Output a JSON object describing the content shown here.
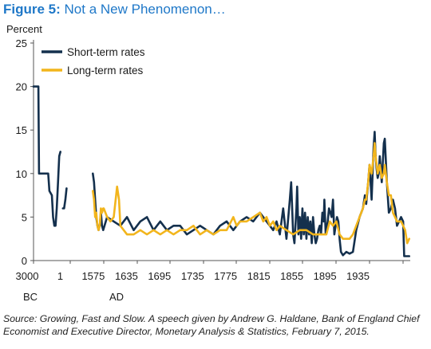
{
  "title": {
    "figure_label": "Figure 5:",
    "text": "Not a New Phenomenon…"
  },
  "source": "Source: Growing, Fast and Slow. A speech given by Andrew G. Haldane, Bank of England Chief Economist and Executive Director, Monetary Analysis & Statistics, February 7, 2015.",
  "colors": {
    "short_term": "#14304d",
    "long_term": "#f2b51c",
    "title": "#1f78c8"
  },
  "chart_data": {
    "type": "line",
    "ylabel": "Percent",
    "ylim": [
      0,
      25
    ],
    "yticks": [
      0,
      5,
      10,
      15,
      20,
      25
    ],
    "xtick_labels": [
      "3000",
      "1",
      "1575",
      "1635",
      "1695",
      "1735",
      "1775",
      "1815",
      "1855",
      "1895",
      "1935",
      "1975"
    ],
    "era_labels": [
      "BC",
      "AD"
    ],
    "grid": false,
    "legend_position": "top-left",
    "series": [
      {
        "name": "Short-term rates",
        "color": "#14304d",
        "segments": [
          [
            [
              -3000,
              20
            ],
            [
              -2800,
              20
            ],
            [
              -2600,
              20
            ],
            [
              -2550,
              10
            ],
            [
              -2300,
              10
            ],
            [
              -2000,
              10
            ],
            [
              -1800,
              10
            ],
            [
              -1700,
              8
            ],
            [
              -1500,
              7.5
            ],
            [
              -1400,
              5
            ],
            [
              -1300,
              4
            ],
            [
              -1200,
              4
            ],
            [
              -1100,
              6
            ],
            [
              -1000,
              9
            ],
            [
              -900,
              12
            ],
            [
              -800,
              12.5
            ]
          ],
          [
            [
              -600,
              6
            ],
            [
              -500,
              6
            ],
            [
              -400,
              7
            ],
            [
              -300,
              8.3
            ]
          ],
          [
            [
              1480,
              10
            ],
            [
              1490,
              9
            ],
            [
              1500,
              7
            ],
            [
              1510,
              5
            ],
            [
              1520,
              4
            ],
            [
              1530,
              3.5
            ],
            [
              1540,
              4
            ],
            [
              1550,
              5.5
            ],
            [
              1560,
              4
            ],
            [
              1570,
              3.5
            ],
            [
              1580,
              5
            ],
            [
              1590,
              4.5
            ],
            [
              1600,
              4
            ],
            [
              1610,
              5
            ],
            [
              1620,
              3.5
            ],
            [
              1630,
              4.5
            ],
            [
              1640,
              5
            ],
            [
              1650,
              3.5
            ],
            [
              1660,
              4.5
            ],
            [
              1670,
              3.5
            ],
            [
              1680,
              4
            ],
            [
              1690,
              4
            ],
            [
              1700,
              3
            ],
            [
              1710,
              3.5
            ],
            [
              1720,
              4
            ],
            [
              1730,
              3.5
            ],
            [
              1740,
              3
            ],
            [
              1750,
              4
            ],
            [
              1760,
              4.5
            ],
            [
              1770,
              3.5
            ],
            [
              1780,
              4.5
            ],
            [
              1790,
              5
            ],
            [
              1800,
              4.5
            ],
            [
              1810,
              5.5
            ],
            [
              1815,
              5
            ],
            [
              1820,
              4.5
            ],
            [
              1825,
              4
            ],
            [
              1830,
              3.5
            ],
            [
              1835,
              4.5
            ],
            [
              1840,
              3
            ],
            [
              1845,
              6
            ],
            [
              1850,
              2.5
            ],
            [
              1855,
              7
            ],
            [
              1857,
              9
            ],
            [
              1860,
              3
            ],
            [
              1862,
              2
            ],
            [
              1865,
              6
            ],
            [
              1866,
              8.5
            ],
            [
              1868,
              3
            ],
            [
              1870,
              5
            ],
            [
              1872,
              2.5
            ],
            [
              1874,
              6
            ],
            [
              1876,
              3
            ],
            [
              1878,
              5.5
            ],
            [
              1880,
              2.5
            ],
            [
              1882,
              5
            ],
            [
              1884,
              3
            ],
            [
              1886,
              4.5
            ],
            [
              1888,
              2
            ],
            [
              1890,
              5
            ],
            [
              1892,
              3
            ],
            [
              1894,
              2
            ],
            [
              1896,
              2.5
            ],
            [
              1898,
              3.5
            ],
            [
              1900,
              4
            ],
            [
              1902,
              3
            ],
            [
              1904,
              5.5
            ],
            [
              1906,
              4.5
            ],
            [
              1907,
              7
            ],
            [
              1909,
              3
            ],
            [
              1912,
              4.5
            ],
            [
              1914,
              6
            ],
            [
              1916,
              5.5
            ],
            [
              1918,
              5
            ],
            [
              1920,
              7
            ],
            [
              1922,
              3
            ],
            [
              1924,
              4
            ],
            [
              1926,
              5
            ],
            [
              1928,
              4.5
            ],
            [
              1930,
              2.5
            ],
            [
              1932,
              1
            ],
            [
              1935,
              0.6
            ],
            [
              1940,
              1
            ],
            [
              1945,
              0.8
            ],
            [
              1950,
              1
            ],
            [
              1955,
              3.5
            ],
            [
              1960,
              5
            ],
            [
              1965,
              6
            ],
            [
              1968,
              7.5
            ],
            [
              1970,
              6.5
            ],
            [
              1973,
              9
            ],
            [
              1975,
              11
            ],
            [
              1977,
              7
            ],
            [
              1979,
              13
            ],
            [
              1980,
              14.8
            ],
            [
              1981,
              12
            ],
            [
              1982,
              10.5
            ],
            [
              1983,
              9.5
            ],
            [
              1984,
              10
            ],
            [
              1985,
              12
            ],
            [
              1987,
              9
            ],
            [
              1989,
              13.5
            ],
            [
              1990,
              14
            ],
            [
              1992,
              9
            ],
            [
              1994,
              5.5
            ],
            [
              1996,
              6
            ],
            [
              1998,
              7
            ],
            [
              2000,
              6
            ],
            [
              2002,
              4
            ],
            [
              2004,
              4.5
            ],
            [
              2006,
              5
            ],
            [
              2008,
              4.5
            ],
            [
              2009,
              0.5
            ],
            [
              2011,
              0.5
            ],
            [
              2014,
              0.5
            ]
          ]
        ]
      },
      {
        "name": "Long-term rates",
        "color": "#f2b51c",
        "segments": [
          [
            [
              1480,
              8
            ],
            [
              1490,
              7
            ],
            [
              1500,
              5
            ],
            [
              1510,
              5.5
            ],
            [
              1520,
              4
            ],
            [
              1530,
              3.5
            ],
            [
              1540,
              4
            ],
            [
              1550,
              6
            ],
            [
              1560,
              5.5
            ],
            [
              1570,
              6
            ],
            [
              1575,
              6
            ],
            [
              1580,
              5
            ],
            [
              1585,
              4.5
            ],
            [
              1590,
              5
            ],
            [
              1595,
              8.5
            ],
            [
              1598,
              7
            ],
            [
              1600,
              4
            ],
            [
              1610,
              3
            ],
            [
              1620,
              3
            ],
            [
              1630,
              3.5
            ],
            [
              1640,
              3
            ],
            [
              1650,
              3.5
            ],
            [
              1660,
              3
            ],
            [
              1670,
              3.5
            ],
            [
              1680,
              3
            ],
            [
              1690,
              3.5
            ],
            [
              1700,
              3.5
            ],
            [
              1710,
              4
            ],
            [
              1720,
              3
            ],
            [
              1730,
              3.5
            ],
            [
              1740,
              3
            ],
            [
              1750,
              3.5
            ],
            [
              1760,
              3.5
            ],
            [
              1770,
              5
            ],
            [
              1775,
              4
            ],
            [
              1780,
              4.5
            ],
            [
              1790,
              4.5
            ],
            [
              1800,
              5
            ],
            [
              1810,
              5.5
            ],
            [
              1815,
              4.5
            ],
            [
              1820,
              5
            ],
            [
              1825,
              4
            ],
            [
              1830,
              4.5
            ],
            [
              1835,
              3.5
            ],
            [
              1840,
              4
            ],
            [
              1850,
              3.5
            ],
            [
              1860,
              3
            ],
            [
              1870,
              3.5
            ],
            [
              1880,
              3.5
            ],
            [
              1890,
              3
            ],
            [
              1900,
              3
            ],
            [
              1910,
              3
            ],
            [
              1915,
              4.5
            ],
            [
              1920,
              4
            ],
            [
              1925,
              4.5
            ],
            [
              1930,
              3
            ],
            [
              1935,
              2.5
            ],
            [
              1940,
              2.5
            ],
            [
              1945,
              2.5
            ],
            [
              1950,
              3
            ],
            [
              1955,
              4
            ],
            [
              1960,
              5
            ],
            [
              1965,
              6
            ],
            [
              1968,
              7
            ],
            [
              1970,
              7
            ],
            [
              1973,
              9
            ],
            [
              1975,
              11
            ],
            [
              1977,
              10
            ],
            [
              1979,
              12
            ],
            [
              1980,
              13.5
            ],
            [
              1981,
              12
            ],
            [
              1983,
              10
            ],
            [
              1985,
              11
            ],
            [
              1987,
              9.5
            ],
            [
              1989,
              10
            ],
            [
              1990,
              11
            ],
            [
              1992,
              9
            ],
            [
              1994,
              7.5
            ],
            [
              1996,
              7.5
            ],
            [
              1998,
              5.5
            ],
            [
              2000,
              5
            ],
            [
              2002,
              4.5
            ],
            [
              2004,
              4.5
            ],
            [
              2006,
              4.5
            ],
            [
              2008,
              4
            ],
            [
              2010,
              3.5
            ],
            [
              2012,
              2
            ],
            [
              2014,
              2.5
            ]
          ]
        ]
      }
    ]
  }
}
